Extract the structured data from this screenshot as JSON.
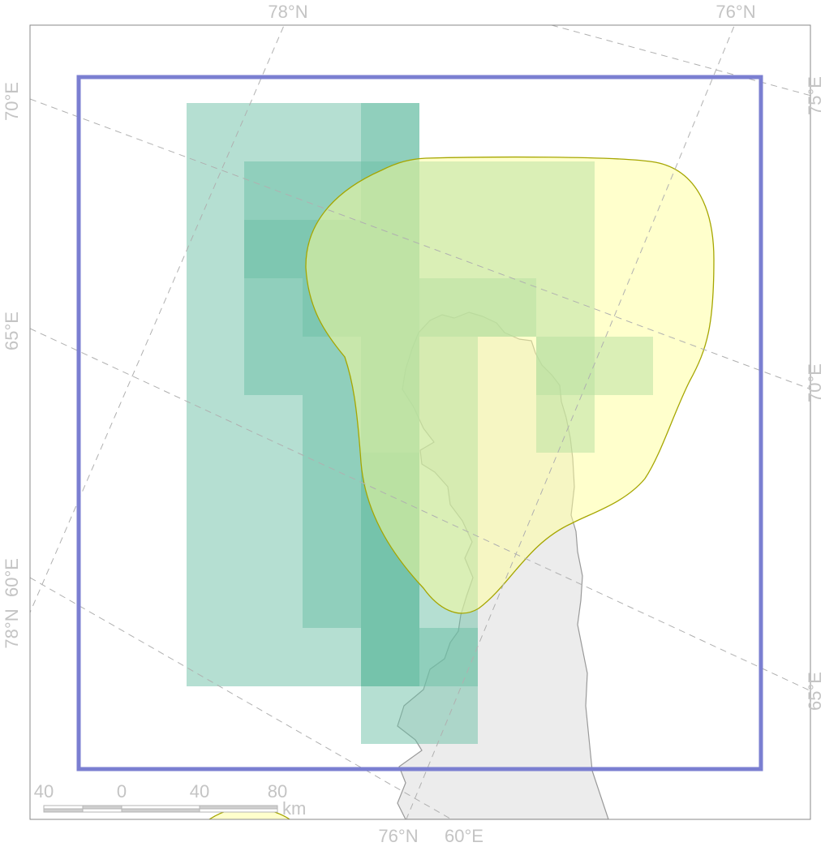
{
  "map": {
    "graticule_labels": {
      "top": [
        "78°N",
        "76°N"
      ],
      "bottom": [
        "76°N",
        "60°E"
      ],
      "left": [
        "70°E",
        "65°E",
        "60°E",
        "78°N"
      ],
      "right": [
        "75°E",
        "70°E",
        "65°E"
      ]
    },
    "scale_bar": {
      "ticks": [
        "40",
        "0",
        "40",
        "80"
      ],
      "unit": "km"
    },
    "colors": {
      "grid_cell": "#6bbfa6",
      "polygon_fill": "#ffff99",
      "polygon_stroke": "#a6a600",
      "land": "#ececec",
      "coastline": "#999999",
      "extent_box": "#7b7fd1",
      "graticule": "#b0b0b0",
      "label": "#c4c4c4"
    }
  }
}
